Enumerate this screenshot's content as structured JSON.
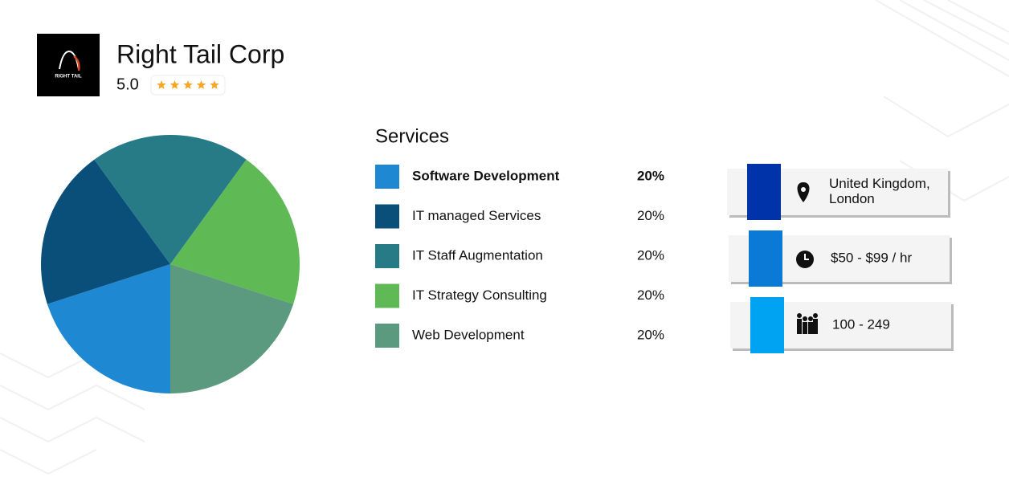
{
  "header": {
    "logo_text": "RIGHT TAIL",
    "company": "Right Tail Corp",
    "rating": "5.0"
  },
  "chart_data": {
    "type": "pie",
    "title": "Services",
    "categories": [
      "Software Development",
      "IT managed Services",
      "IT Staff Augmentation",
      "IT Strategy Consulting",
      "Web Development"
    ],
    "values": [
      20,
      20,
      20,
      20,
      20
    ],
    "value_labels": [
      "20%",
      "20%",
      "20%",
      "20%",
      "20%"
    ],
    "colors": [
      "#1e88d2",
      "#0a4f7a",
      "#267b87",
      "#5fba55",
      "#5b9a7f"
    ]
  },
  "info": [
    {
      "lines": [
        "United Kingdom,",
        "London"
      ],
      "color": "#0033aa"
    },
    {
      "lines": [
        "$50 - $99 / hr"
      ],
      "color": "#0a7ad6"
    },
    {
      "lines": [
        "100 - 249"
      ],
      "color": "#00a2f2"
    }
  ]
}
